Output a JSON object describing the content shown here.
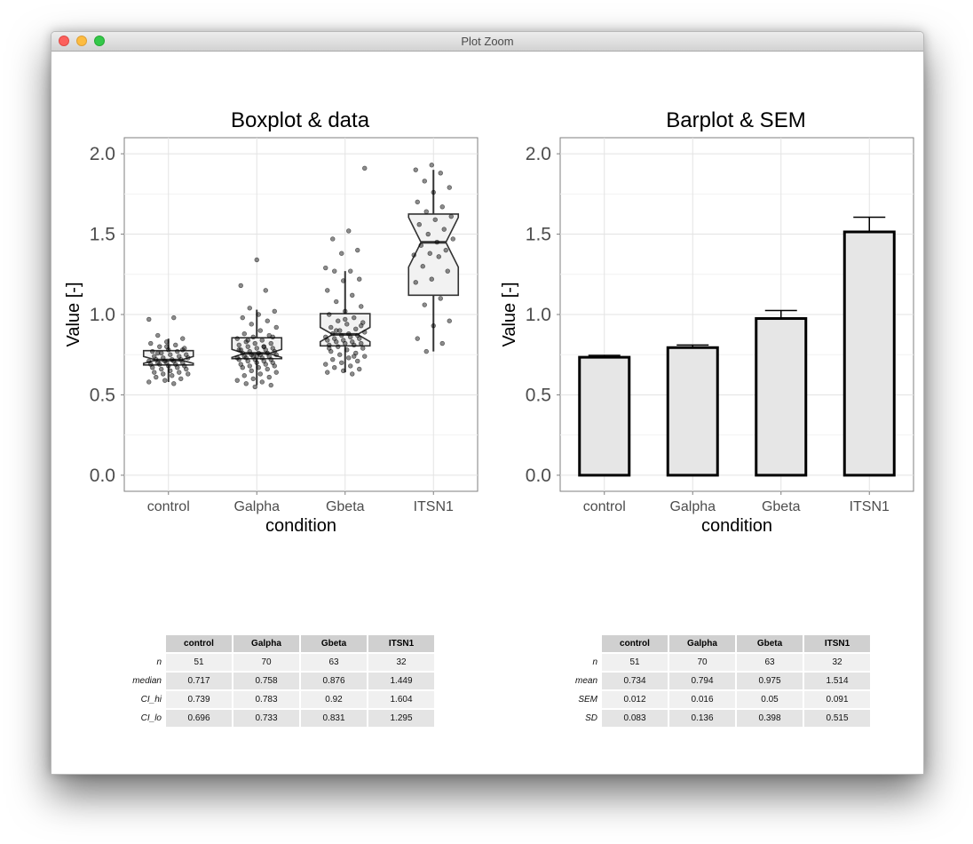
{
  "window": {
    "title": "Plot Zoom",
    "lights": {
      "close": "#fc605c",
      "minimize": "#fdbc40",
      "maximize": "#34c84a"
    }
  },
  "chart_data": [
    {
      "type": "box",
      "title": "Boxplot & data",
      "xlabel": "condition",
      "ylabel": "Value [-]",
      "categories": [
        "control",
        "Galpha",
        "Gbeta",
        "ITSN1"
      ],
      "ylim": [
        -0.1,
        2.1
      ],
      "yticks": [
        "0.0",
        "0.5",
        "1.0",
        "1.5",
        "2.0"
      ],
      "boxes": [
        {
          "median": 0.717,
          "q1": 0.686,
          "q3": 0.775,
          "notch_lo": 0.696,
          "notch_hi": 0.739,
          "whisker_lo": 0.58,
          "whisker_hi": 0.85
        },
        {
          "median": 0.758,
          "q1": 0.725,
          "q3": 0.855,
          "notch_lo": 0.733,
          "notch_hi": 0.783,
          "whisker_lo": 0.56,
          "whisker_hi": 1.03
        },
        {
          "median": 0.876,
          "q1": 0.805,
          "q3": 1.005,
          "notch_lo": 0.831,
          "notch_hi": 0.92,
          "whisker_lo": 0.64,
          "whisker_hi": 1.27
        },
        {
          "median": 1.449,
          "q1": 1.12,
          "q3": 1.625,
          "notch_lo": 1.295,
          "notch_hi": 1.604,
          "whisker_lo": 0.77,
          "whisker_hi": 1.9
        }
      ],
      "points": [
        [
          0.97,
          0.98,
          0.87,
          0.85,
          0.83,
          0.82,
          0.81,
          0.8,
          0.79,
          0.78,
          0.77,
          0.77,
          0.76,
          0.75,
          0.75,
          0.74,
          0.74,
          0.73,
          0.73,
          0.72,
          0.72,
          0.72,
          0.71,
          0.71,
          0.71,
          0.7,
          0.7,
          0.7,
          0.69,
          0.69,
          0.69,
          0.68,
          0.68,
          0.67,
          0.67,
          0.66,
          0.66,
          0.65,
          0.64,
          0.64,
          0.63,
          0.63,
          0.62,
          0.61,
          0.6,
          0.59,
          0.58,
          0.57,
          0.76,
          0.78,
          0.8
        ],
        [
          1.34,
          1.18,
          1.15,
          1.04,
          1.02,
          1.0,
          0.98,
          0.96,
          0.94,
          0.92,
          0.9,
          0.88,
          0.87,
          0.86,
          0.85,
          0.84,
          0.83,
          0.82,
          0.82,
          0.81,
          0.8,
          0.8,
          0.79,
          0.79,
          0.78,
          0.78,
          0.77,
          0.77,
          0.76,
          0.76,
          0.76,
          0.75,
          0.75,
          0.75,
          0.74,
          0.74,
          0.74,
          0.73,
          0.73,
          0.73,
          0.72,
          0.72,
          0.72,
          0.71,
          0.71,
          0.7,
          0.7,
          0.69,
          0.69,
          0.68,
          0.68,
          0.67,
          0.67,
          0.66,
          0.65,
          0.64,
          0.63,
          0.62,
          0.61,
          0.6,
          0.59,
          0.58,
          0.57,
          0.56,
          0.55,
          0.78,
          0.8,
          0.84,
          0.86,
          0.74
        ],
        [
          1.91,
          1.52,
          1.47,
          1.4,
          1.38,
          1.29,
          1.27,
          1.27,
          1.22,
          1.21,
          1.15,
          1.12,
          1.08,
          1.05,
          1.02,
          1.0,
          0.98,
          0.96,
          0.95,
          0.94,
          0.92,
          0.91,
          0.9,
          0.89,
          0.88,
          0.88,
          0.87,
          0.87,
          0.86,
          0.86,
          0.85,
          0.85,
          0.84,
          0.84,
          0.83,
          0.83,
          0.82,
          0.82,
          0.81,
          0.81,
          0.8,
          0.79,
          0.78,
          0.77,
          0.76,
          0.75,
          0.74,
          0.73,
          0.72,
          0.71,
          0.7,
          0.69,
          0.68,
          0.67,
          0.66,
          0.65,
          0.64,
          0.63,
          0.9,
          0.93,
          0.97,
          0.79,
          0.74
        ],
        [
          1.93,
          1.9,
          1.88,
          1.83,
          1.79,
          1.76,
          1.7,
          1.67,
          1.64,
          1.61,
          1.59,
          1.56,
          1.53,
          1.5,
          1.47,
          1.45,
          1.43,
          1.4,
          1.38,
          1.37,
          1.36,
          1.3,
          1.27,
          1.22,
          1.2,
          1.1,
          1.06,
          0.96,
          0.93,
          0.85,
          0.82,
          0.77
        ]
      ]
    },
    {
      "type": "bar",
      "title": "Barplot & SEM",
      "xlabel": "condition",
      "ylabel": "Value [-]",
      "categories": [
        "control",
        "Galpha",
        "Gbeta",
        "ITSN1"
      ],
      "values": [
        0.734,
        0.794,
        0.975,
        1.514
      ],
      "errors": [
        0.012,
        0.016,
        0.05,
        0.091
      ],
      "ylim": [
        -0.1,
        2.1
      ],
      "yticks": [
        "0.0",
        "0.5",
        "1.0",
        "1.5",
        "2.0"
      ]
    }
  ],
  "tables": {
    "boxplot": {
      "columns": [
        "control",
        "Galpha",
        "Gbeta",
        "ITSN1"
      ],
      "rows": [
        {
          "label": "n",
          "values": [
            "51",
            "70",
            "63",
            "32"
          ]
        },
        {
          "label": "median",
          "values": [
            "0.717",
            "0.758",
            "0.876",
            "1.449"
          ]
        },
        {
          "label": "CI_hi",
          "values": [
            "0.739",
            "0.783",
            "0.92",
            "1.604"
          ]
        },
        {
          "label": "CI_lo",
          "values": [
            "0.696",
            "0.733",
            "0.831",
            "1.295"
          ]
        }
      ]
    },
    "barplot": {
      "columns": [
        "control",
        "Galpha",
        "Gbeta",
        "ITSN1"
      ],
      "rows": [
        {
          "label": "n",
          "values": [
            "51",
            "70",
            "63",
            "32"
          ]
        },
        {
          "label": "mean",
          "values": [
            "0.734",
            "0.794",
            "0.975",
            "1.514"
          ]
        },
        {
          "label": "SEM",
          "values": [
            "0.012",
            "0.016",
            "0.05",
            "0.091"
          ]
        },
        {
          "label": "SD",
          "values": [
            "0.083",
            "0.136",
            "0.398",
            "0.515"
          ]
        }
      ]
    }
  }
}
